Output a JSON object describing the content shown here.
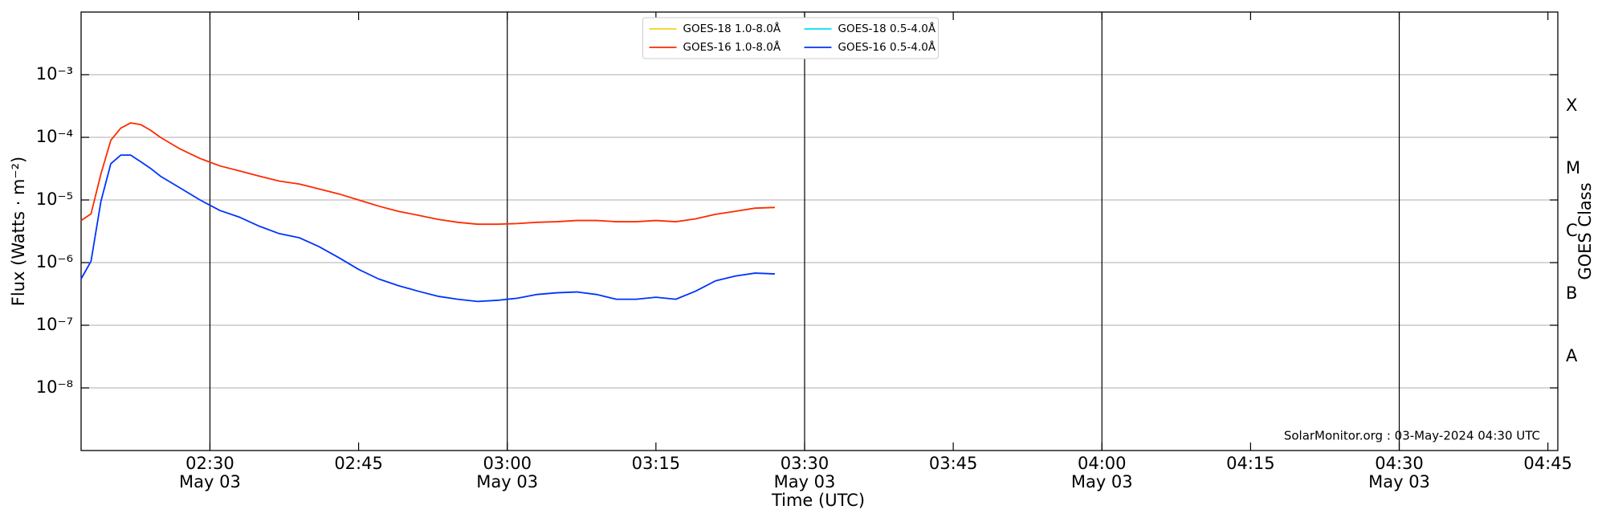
{
  "chart_data": {
    "type": "line",
    "xlabel": "Time (UTC)",
    "ylabel": "Flux (Watts · m⁻²)",
    "y2label": "GOES Class",
    "annotation": "SolarMonitor.org : 03-May-2024 04:30 UTC",
    "log_y": true,
    "grid": true,
    "legend": "upper center",
    "x": [
      "May 03 02:17",
      "May 03 02:18",
      "May 03 02:19",
      "May 03 02:20",
      "May 03 02:21",
      "May 03 02:22",
      "May 03 02:23",
      "May 03 02:24",
      "May 03 02:25",
      "May 03 02:27",
      "May 03 02:29",
      "May 03 02:31",
      "May 03 02:33",
      "May 03 02:35",
      "May 03 02:37",
      "May 03 02:39",
      "May 03 02:41",
      "May 03 02:43",
      "May 03 02:45",
      "May 03 02:47",
      "May 03 02:49",
      "May 03 02:51",
      "May 03 02:53",
      "May 03 02:55",
      "May 03 02:57",
      "May 03 02:59",
      "May 03 03:01",
      "May 03 03:03",
      "May 03 03:05",
      "May 03 03:07",
      "May 03 03:09",
      "May 03 03:11",
      "May 03 03:13",
      "May 03 03:15",
      "May 03 03:17",
      "May 03 03:19",
      "May 03 03:21",
      "May 03 03:23",
      "May 03 03:25",
      "May 03 03:27"
    ],
    "series": [
      {
        "name": "GOES-18 1.0-8.0Å",
        "color": "#f2d21b",
        "values": [
          null,
          null,
          null,
          null,
          null,
          null,
          null,
          null,
          null,
          null,
          null,
          null,
          null,
          null,
          null,
          null,
          null,
          null,
          null,
          null,
          null,
          null,
          null,
          null,
          null,
          null,
          null,
          null,
          null,
          null,
          null,
          null,
          null,
          null,
          null,
          null,
          null,
          null,
          null,
          null
        ]
      },
      {
        "name": "GOES-16 1.0-8.0Å",
        "color": "#ff2a00",
        "values": [
          4.7e-06,
          6e-06,
          2.6e-05,
          9e-05,
          0.00014,
          0.00017,
          0.00016,
          0.00013,
          0.0001,
          6.5e-05,
          4.6e-05,
          3.5e-05,
          2.9e-05,
          2.4e-05,
          2e-05,
          1.8e-05,
          1.5e-05,
          1.25e-05,
          1e-05,
          8e-06,
          6.6e-06,
          5.7e-06,
          4.9e-06,
          4.4e-06,
          4.1e-06,
          4.1e-06,
          4.2e-06,
          4.4e-06,
          4.5e-06,
          4.7e-06,
          4.7e-06,
          4.5e-06,
          4.5e-06,
          4.7e-06,
          4.5e-06,
          5e-06,
          5.9e-06,
          6.6e-06,
          7.4e-06,
          7.6e-06
        ]
      },
      {
        "name": "GOES-18 0.5-4.0Å",
        "color": "#00e0ee",
        "values": [
          null,
          null,
          null,
          null,
          null,
          null,
          null,
          null,
          null,
          null,
          null,
          null,
          null,
          null,
          null,
          null,
          null,
          null,
          null,
          null,
          null,
          null,
          null,
          null,
          null,
          null,
          null,
          null,
          null,
          null,
          null,
          null,
          null,
          null,
          null,
          null,
          null,
          null,
          null,
          null
        ]
      },
      {
        "name": "GOES-16 0.5-4.0Å",
        "color": "#0033ff",
        "values": [
          5.5e-07,
          1.05e-06,
          9.5e-06,
          3.8e-05,
          5.2e-05,
          5.2e-05,
          4.1e-05,
          3.2e-05,
          2.4e-05,
          1.55e-05,
          1e-05,
          6.8e-06,
          5.3e-06,
          3.8e-06,
          2.9e-06,
          2.5e-06,
          1.8e-06,
          1.2e-06,
          7.8e-07,
          5.5e-07,
          4.3e-07,
          3.5e-07,
          2.9e-07,
          2.6e-07,
          2.4e-07,
          2.5e-07,
          2.7e-07,
          3.1e-07,
          3.3e-07,
          3.4e-07,
          3.1e-07,
          2.6e-07,
          2.6e-07,
          2.8e-07,
          2.6e-07,
          3.5e-07,
          5.1e-07,
          6.1e-07,
          6.8e-07,
          6.6e-07
        ]
      }
    ],
    "xlim": [
      "May 03 02:17",
      "May 03 04:46"
    ],
    "xticks": [
      {
        "value": "May 03 02:30",
        "label": "02:30\nMay 03"
      },
      {
        "value": "May 03 02:45",
        "label": "02:45"
      },
      {
        "value": "May 03 03:00",
        "label": "03:00\nMay 03"
      },
      {
        "value": "May 03 03:15",
        "label": "03:15"
      },
      {
        "value": "May 03 03:30",
        "label": "03:30\nMay 03"
      },
      {
        "value": "May 03 03:45",
        "label": "03:45"
      },
      {
        "value": "May 03 04:00",
        "label": "04:00\nMay 03"
      },
      {
        "value": "May 03 04:15",
        "label": "04:15"
      },
      {
        "value": "May 03 04:30",
        "label": "04:30\nMay 03"
      },
      {
        "value": "May 03 04:45",
        "label": "04:45"
      }
    ],
    "ylim": [
      1e-09,
      0.01
    ],
    "yticks": [
      {
        "value": 0.001,
        "label": "10⁻³"
      },
      {
        "value": 0.0001,
        "label": "10⁻⁴"
      },
      {
        "value": 1e-05,
        "label": "10⁻⁵"
      },
      {
        "value": 1e-06,
        "label": "10⁻⁶"
      },
      {
        "value": 1e-07,
        "label": "10⁻⁷"
      },
      {
        "value": 1e-08,
        "label": "10⁻⁸"
      }
    ],
    "y2lim": [
      1e-09,
      0.01
    ],
    "y2ticks": [
      {
        "value": 0.000316,
        "label": "X"
      },
      {
        "value": 3.16e-05,
        "label": "M"
      },
      {
        "value": 3.16e-06,
        "label": "C"
      },
      {
        "value": 3.16e-07,
        "label": "B"
      },
      {
        "value": 3.16e-08,
        "label": "A"
      }
    ]
  }
}
